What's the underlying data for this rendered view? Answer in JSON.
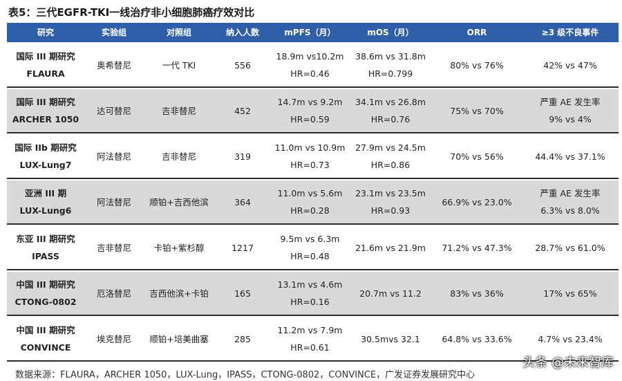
{
  "title": "表5：三代EGFR-TKI一线治疗非小细胞肺癌疗效对比",
  "table": {
    "headers": [
      "研究",
      "实验组",
      "对照组",
      "纳入人数",
      "mPFS（月）",
      "mOS（月）",
      "ORR",
      "≥3 级不良事件"
    ],
    "rows": [
      [
        [
          "国际 III 期研究",
          "FLAURA"
        ],
        [
          "奥希替尼"
        ],
        [
          "一代 TKI"
        ],
        [
          "556"
        ],
        [
          "18.9m vs10.2m",
          "HR=0.46"
        ],
        [
          "38.6m vs 31.8m",
          "HR=0.799"
        ],
        [
          "80% vs 76%"
        ],
        [
          "42% vs 47%"
        ]
      ],
      [
        [
          "国际 III 期研究",
          "ARCHER 1050"
        ],
        [
          "达可替尼"
        ],
        [
          "吉非替尼"
        ],
        [
          "452"
        ],
        [
          "14.7m vs 9.2m",
          "HR=0.59"
        ],
        [
          "34.1m vs 26.8m",
          "HR=0.76"
        ],
        [
          "75% vs 70%"
        ],
        [
          "严重 AE 发生率",
          "9% vs 4%"
        ]
      ],
      [
        [
          "国际 IIb 期研究",
          "LUX-Lung7"
        ],
        [
          "阿法替尼"
        ],
        [
          "吉非替尼"
        ],
        [
          "319"
        ],
        [
          "11.0m vs 10.9m",
          "HR=0.73"
        ],
        [
          "27.9m vs 24.5m",
          "HR=0.86"
        ],
        [
          "70% vs 56%"
        ],
        [
          "44.4% vs 37.1%"
        ]
      ],
      [
        [
          "亚洲 III 期",
          "LUX-Lung6"
        ],
        [
          "阿法替尼"
        ],
        [
          "顺铂+吉西他滨"
        ],
        [
          "364"
        ],
        [
          "11.0m vs 5.6m",
          "HR=0.28"
        ],
        [
          "23.1m vs 23.5m",
          "HR=0.93"
        ],
        [
          "66.9% vs 23.0%"
        ],
        [
          "严重 AE 发生率",
          "6.3% vs 8.0%"
        ]
      ],
      [
        [
          "东亚 III 期研究",
          "IPASS"
        ],
        [
          "吉非替尼"
        ],
        [
          "卡铂+紫杉醇"
        ],
        [
          "1217"
        ],
        [
          "9.5m vs 6.3m",
          "HR=0.48"
        ],
        [
          "21.6m vs 21.9m"
        ],
        [
          "71.2% vs 47.3%"
        ],
        [
          "28.7% vs 61.0%"
        ]
      ],
      [
        [
          "中国 III 期研究",
          "CTONG-0802"
        ],
        [
          "厄洛替尼"
        ],
        [
          "吉西他滨+卡铂"
        ],
        [
          "165"
        ],
        [
          "13.1m vs 4.6m",
          "HR=0.16"
        ],
        [
          "20.7m vs 11.2"
        ],
        [
          "83% vs 36%"
        ],
        [
          "17% vs 65%"
        ]
      ],
      [
        [
          "中国 III 期研究",
          "CONVINCE"
        ],
        [
          "埃克替尼"
        ],
        [
          "顺铂+培美曲塞"
        ],
        [
          "285"
        ],
        [
          "11.2m vs 7.9m",
          "HR=0.61"
        ],
        [
          "30.5mvs 32.1"
        ],
        [
          "64.8% vs 33.6%"
        ],
        [
          "4.7% vs 23.4%"
        ]
      ]
    ]
  },
  "source": "数据来源：FLAURA，ARCHER 1050，LUX-Lung，IPASS，CTONG-0802，CONVINCE，广发证券发展研究中心",
  "watermark": "头条 @未来智库"
}
